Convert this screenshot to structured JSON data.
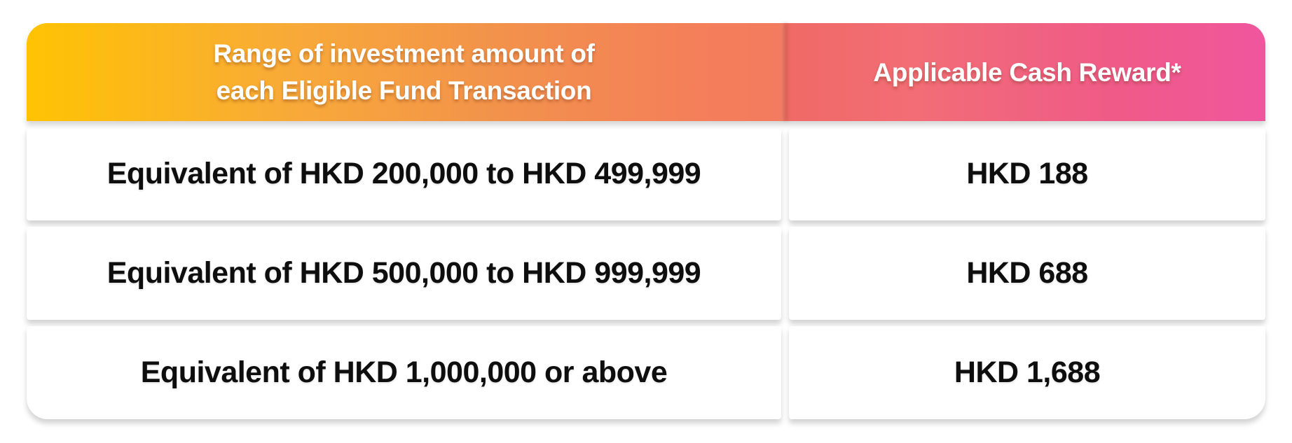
{
  "table": {
    "header": {
      "col1_line1": "Range of investment amount of",
      "col1_line2": "each Eligible Fund Transaction",
      "col2": "Applicable Cash Reward*"
    },
    "rows": [
      {
        "range": "Equivalent of HKD 200,000 to HKD 499,999",
        "reward": "HKD 188"
      },
      {
        "range": "Equivalent of HKD 500,000 to HKD 999,999",
        "reward": "HKD 688"
      },
      {
        "range": "Equivalent of HKD 1,000,000 or above",
        "reward": "HKD 1,688"
      }
    ],
    "colors": {
      "header_gradient_start": "#FFC303",
      "header_gradient_mid_orange": "#F2924B",
      "header_gradient_mid_salmon": "#F06A67",
      "header_gradient_end": "#F0569E",
      "header_text": "#FFFFFF",
      "row_background": "#FFFFFF",
      "body_text": "#0E0E0E"
    }
  },
  "chart_data": {
    "type": "table",
    "title": "",
    "columns": [
      "Range of investment amount of each Eligible Fund Transaction",
      "Applicable Cash Reward*"
    ],
    "rows": [
      [
        "Equivalent of HKD 200,000 to HKD 499,999",
        "HKD 188"
      ],
      [
        "Equivalent of HKD 500,000 to HKD 999,999",
        "HKD 688"
      ],
      [
        "Equivalent of HKD 1,000,000 or above",
        "HKD 1,688"
      ]
    ],
    "reward_values_hkd": [
      188,
      688,
      1688
    ],
    "tier_min_hkd": [
      200000,
      500000,
      1000000
    ],
    "tier_max_hkd": [
      499999,
      999999,
      null
    ]
  }
}
